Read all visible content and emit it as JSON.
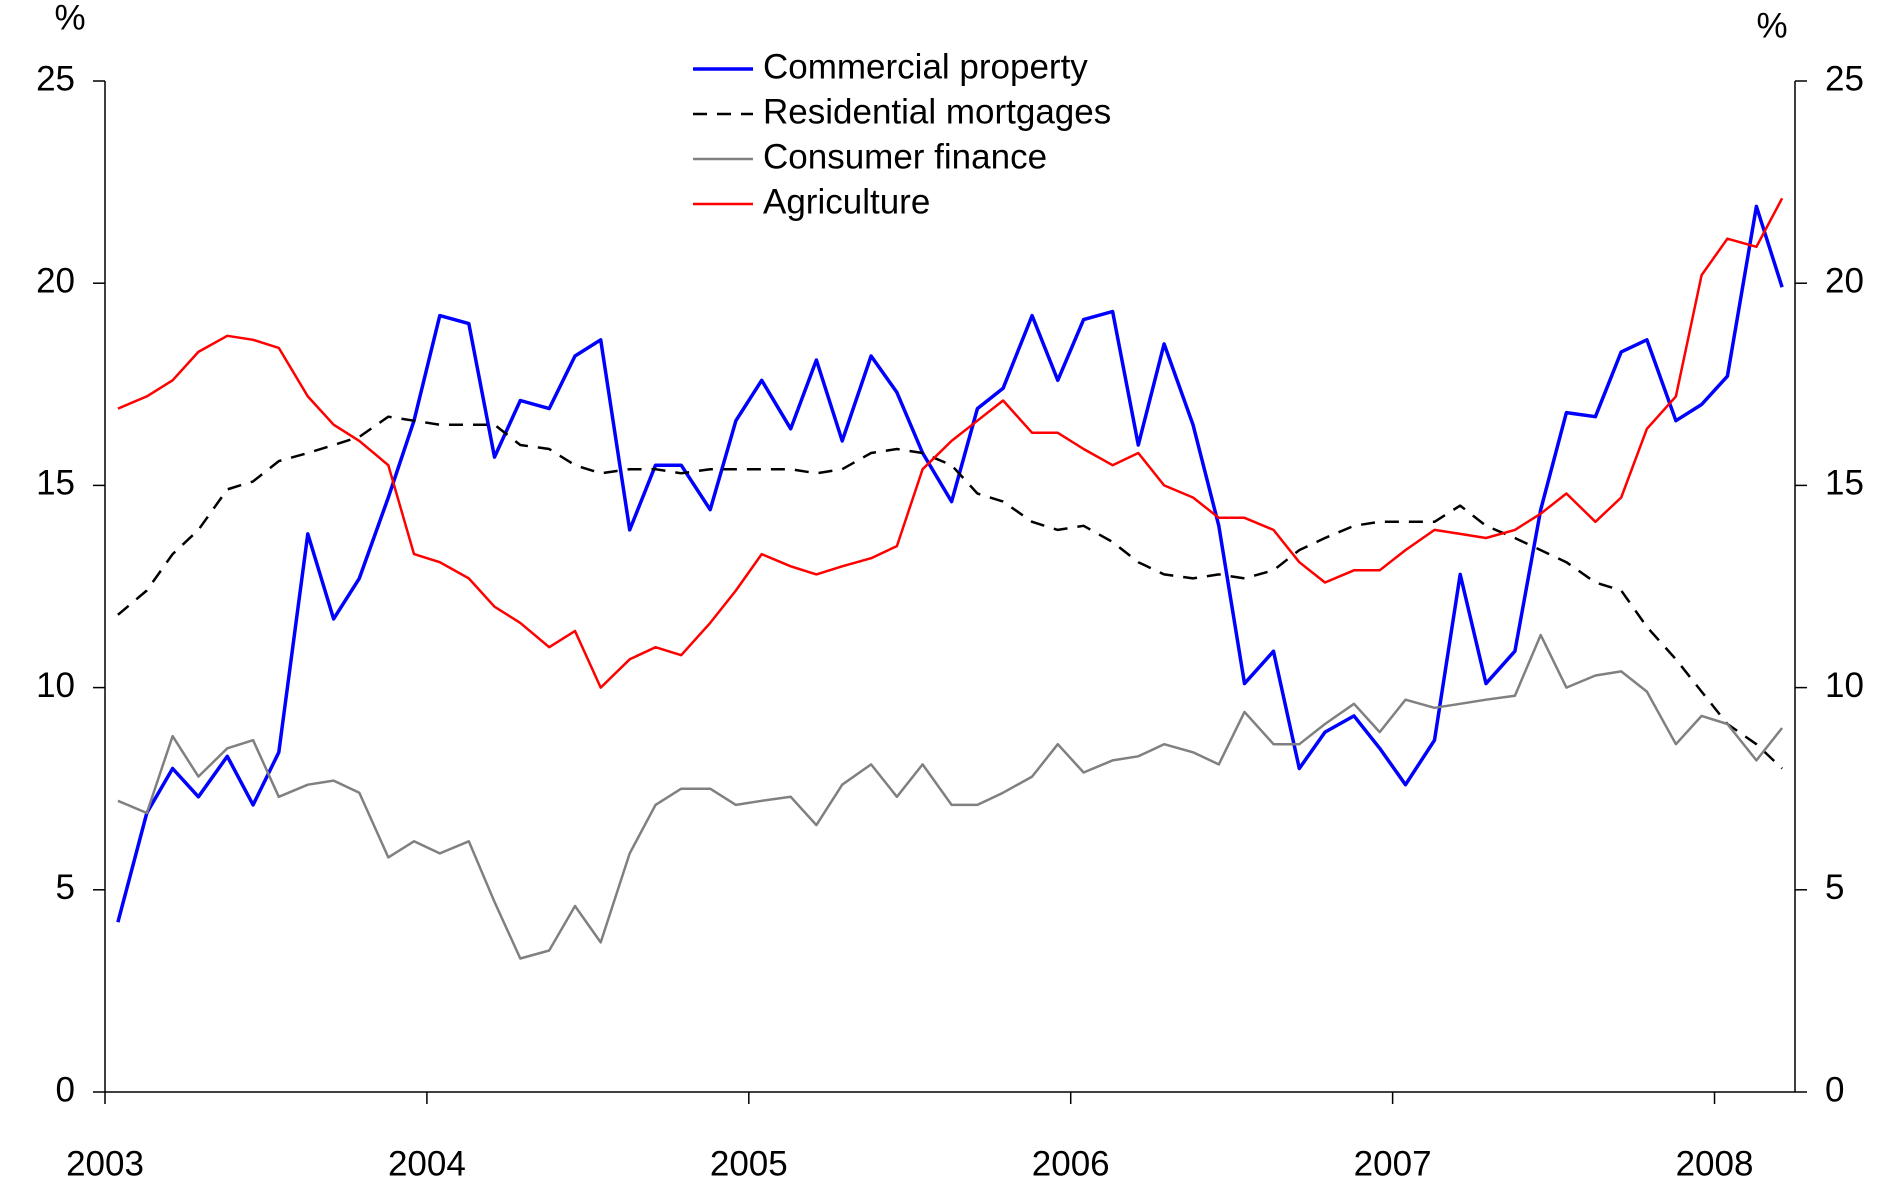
{
  "chart_data": {
    "type": "line",
    "y_label": "%",
    "y2_label": "%",
    "x": [
      2003.04,
      2003.13,
      2003.21,
      2003.29,
      2003.38,
      2003.46,
      2003.54,
      2003.63,
      2003.71,
      2003.79,
      2003.88,
      2003.96,
      2004.04,
      2004.13,
      2004.21,
      2004.29,
      2004.38,
      2004.46,
      2004.54,
      2004.63,
      2004.71,
      2004.79,
      2004.88,
      2004.96,
      2005.04,
      2005.13,
      2005.21,
      2005.29,
      2005.38,
      2005.46,
      2005.54,
      2005.63,
      2005.71,
      2005.79,
      2005.88,
      2005.96,
      2006.04,
      2006.13,
      2006.21,
      2006.29,
      2006.38,
      2006.46,
      2006.54,
      2006.63,
      2006.71,
      2006.79,
      2006.88,
      2006.96,
      2007.04,
      2007.13,
      2007.21,
      2007.29,
      2007.38,
      2007.46,
      2007.54,
      2007.63,
      2007.71,
      2007.79,
      2007.88,
      2007.96,
      2008.04,
      2008.13,
      2008.21
    ],
    "xlim": [
      2003,
      2008.25
    ],
    "xticks": [
      2003,
      2004,
      2005,
      2006,
      2007,
      2008
    ],
    "ylim": [
      0,
      25
    ],
    "yticks": [
      0,
      5,
      10,
      15,
      20,
      25
    ],
    "y2lim": [
      0,
      25
    ],
    "y2ticks": [
      0,
      5,
      10,
      15,
      20,
      25
    ],
    "series": [
      {
        "name": "Commercial property",
        "color": "#0000ff",
        "width": 3.5,
        "dashed": false,
        "values": [
          4.2,
          6.9,
          8.0,
          7.3,
          8.3,
          7.1,
          8.4,
          13.8,
          11.7,
          12.7,
          14.7,
          16.6,
          19.2,
          19.0,
          15.7,
          17.1,
          16.9,
          18.2,
          18.6,
          13.9,
          15.5,
          15.5,
          14.4,
          16.6,
          17.6,
          16.4,
          18.1,
          16.1,
          18.2,
          17.3,
          15.8,
          14.6,
          16.9,
          17.4,
          19.2,
          17.6,
          19.1,
          19.3,
          16.0,
          18.5,
          16.5,
          14.0,
          10.1,
          10.9,
          8.0,
          8.9,
          9.3,
          8.5,
          7.6,
          8.7,
          12.8,
          10.1,
          10.9,
          14.4,
          16.8,
          16.7,
          18.3,
          18.6,
          16.6,
          17.0,
          17.7,
          21.9,
          19.9
        ]
      },
      {
        "name": "Residential mortgages",
        "color": "#000000",
        "width": 2.5,
        "dashed": true,
        "values": [
          11.8,
          12.4,
          13.3,
          13.9,
          14.9,
          15.1,
          15.6,
          15.8,
          16.0,
          16.2,
          16.7,
          16.6,
          16.5,
          16.5,
          16.5,
          16.0,
          15.9,
          15.5,
          15.3,
          15.4,
          15.4,
          15.3,
          15.4,
          15.4,
          15.4,
          15.4,
          15.3,
          15.4,
          15.8,
          15.9,
          15.8,
          15.5,
          14.8,
          14.6,
          14.1,
          13.9,
          14.0,
          13.6,
          13.1,
          12.8,
          12.7,
          12.8,
          12.7,
          12.9,
          13.4,
          13.7,
          14.0,
          14.1,
          14.1,
          14.1,
          14.5,
          14.0,
          13.7,
          13.4,
          13.1,
          12.6,
          12.4,
          11.5,
          10.7,
          9.9,
          9.1,
          8.6,
          8.0
        ]
      },
      {
        "name": "Consumer finance",
        "color": "#808080",
        "width": 2.5,
        "dashed": false,
        "values": [
          7.2,
          6.9,
          8.8,
          7.8,
          8.5,
          8.7,
          7.3,
          7.6,
          7.7,
          7.4,
          5.8,
          6.2,
          5.9,
          6.2,
          4.7,
          3.3,
          3.5,
          4.6,
          3.7,
          5.9,
          7.1,
          7.5,
          7.5,
          7.1,
          7.2,
          7.3,
          6.6,
          7.6,
          8.1,
          7.3,
          8.1,
          7.1,
          7.1,
          7.4,
          7.8,
          8.6,
          7.9,
          8.2,
          8.3,
          8.6,
          8.4,
          8.1,
          9.4,
          8.6,
          8.6,
          9.1,
          9.6,
          8.9,
          9.7,
          9.5,
          9.6,
          9.7,
          9.8,
          11.3,
          10.0,
          10.3,
          10.4,
          9.9,
          8.6,
          9.3,
          9.1,
          8.2,
          9.0
        ]
      },
      {
        "name": "Agriculture",
        "color": "#ff0000",
        "width": 2.5,
        "dashed": false,
        "values": [
          16.9,
          17.2,
          17.6,
          18.3,
          18.7,
          18.6,
          18.4,
          17.2,
          16.5,
          16.1,
          15.5,
          13.3,
          13.1,
          12.7,
          12.0,
          11.6,
          11.0,
          11.4,
          10.0,
          10.7,
          11.0,
          10.8,
          11.6,
          12.4,
          13.3,
          13.0,
          12.8,
          13.0,
          13.2,
          13.5,
          15.4,
          16.1,
          16.6,
          17.1,
          16.3,
          16.3,
          15.9,
          15.5,
          15.8,
          15.0,
          14.7,
          14.2,
          14.2,
          13.9,
          13.1,
          12.6,
          12.9,
          12.9,
          13.4,
          13.9,
          13.8,
          13.7,
          13.9,
          14.3,
          14.8,
          14.1,
          14.7,
          16.4,
          17.2,
          20.2,
          21.1,
          20.9,
          22.1
        ]
      }
    ]
  }
}
